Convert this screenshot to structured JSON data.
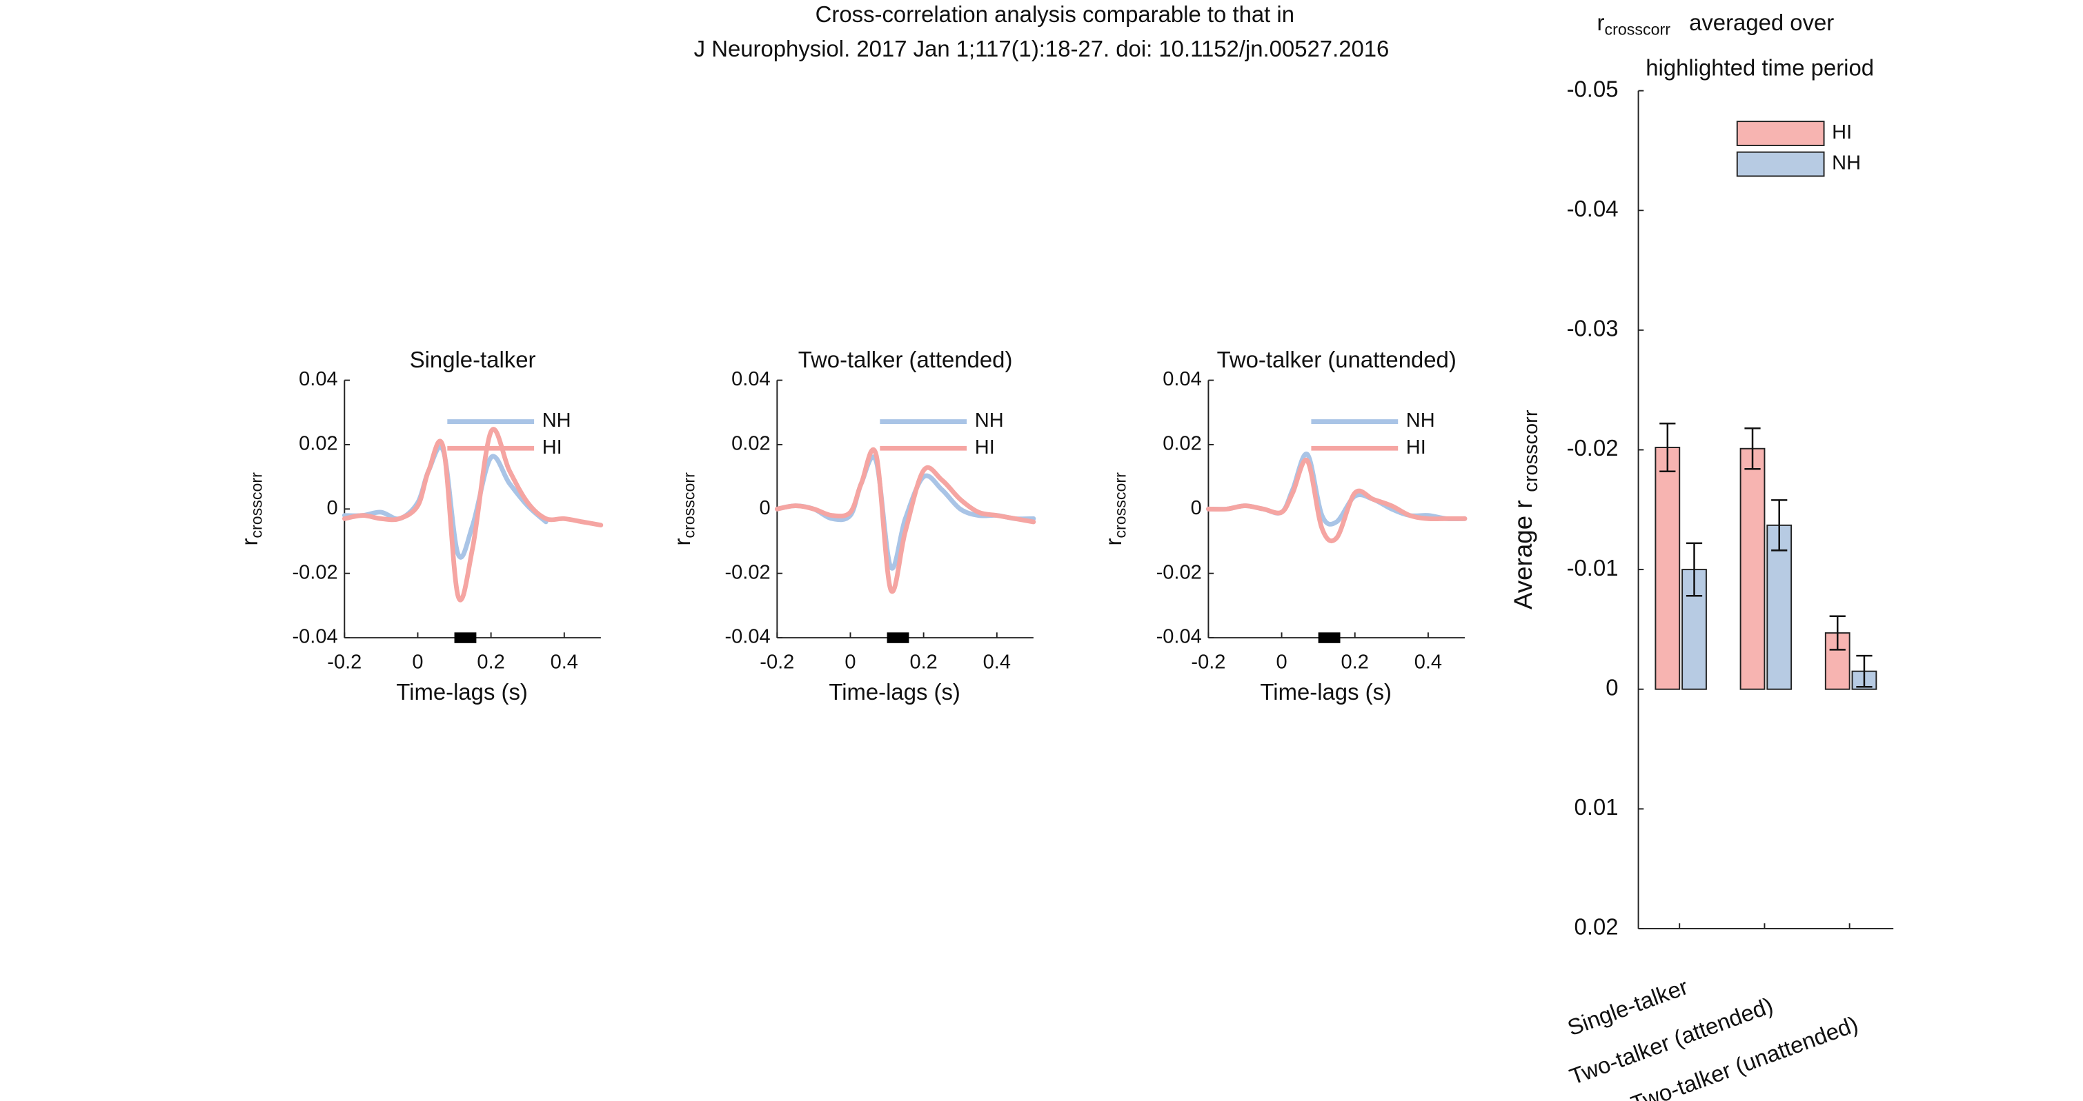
{
  "title": [
    "Cross-correlation analysis comparable to that in",
    "J Neurophysiol. 2017 Jan 1;117(1):18-27. doi: 10.1152/jn.00527.2016"
  ],
  "chart_data": [
    {
      "type": "line",
      "title": "Single-talker",
      "xlabel": "Time-lags (s)",
      "ylabel": {
        "main": "r",
        "sub": "crosscorr"
      },
      "x": [
        -0.2,
        -0.15,
        -0.1,
        -0.05,
        0,
        0.03,
        0.07,
        0.11,
        0.15,
        0.2,
        0.25,
        0.3,
        0.35,
        0.4,
        0.45,
        0.5
      ],
      "xlim": [
        -0.2,
        0.5
      ],
      "xticks": [
        -0.2,
        0,
        0.2,
        0.4
      ],
      "ylim": [
        -0.04,
        0.04
      ],
      "yticks": [
        -0.04,
        -0.02,
        0,
        0.02,
        0.04
      ],
      "highlight": [
        0.1,
        0.16
      ],
      "series": [
        {
          "name": "NH",
          "color": "#a9c4e6",
          "values": [
            -0.002,
            -0.002,
            -0.001,
            -0.003,
            0.002,
            0.012,
            0.018,
            -0.014,
            -0.005,
            0.016,
            0.008,
            0.001,
            -0.004,
            null,
            null,
            null
          ]
        },
        {
          "name": "HI",
          "color": "#f5a5a2",
          "values": [
            -0.003,
            -0.002,
            -0.003,
            -0.003,
            0.001,
            0.012,
            0.019,
            -0.027,
            -0.012,
            0.024,
            0.012,
            0.002,
            -0.003,
            -0.003,
            -0.004,
            -0.005
          ]
        }
      ]
    },
    {
      "type": "line",
      "title": "Two-talker (attended)",
      "xlabel": "Time-lags (s)",
      "ylabel": {
        "main": "r",
        "sub": "crosscorr"
      },
      "x": [
        -0.2,
        -0.15,
        -0.1,
        -0.05,
        0,
        0.03,
        0.07,
        0.11,
        0.15,
        0.2,
        0.25,
        0.3,
        0.35,
        0.4,
        0.45,
        0.5
      ],
      "xlim": [
        -0.2,
        0.5
      ],
      "xticks": [
        -0.2,
        0,
        0.2,
        0.4
      ],
      "ylim": [
        -0.04,
        0.04
      ],
      "yticks": [
        -0.04,
        -0.02,
        0,
        0.02,
        0.04
      ],
      "highlight": [
        0.1,
        0.16
      ],
      "series": [
        {
          "name": "NH",
          "color": "#a9c4e6",
          "values": [
            0,
            0.001,
            0,
            -0.003,
            -0.002,
            0.008,
            0.015,
            -0.018,
            -0.003,
            0.01,
            0.006,
            0,
            -0.002,
            -0.002,
            -0.003,
            -0.003
          ]
        },
        {
          "name": "HI",
          "color": "#f5a5a2",
          "values": [
            0,
            0.001,
            0,
            -0.002,
            -0.001,
            0.008,
            0.017,
            -0.025,
            -0.007,
            0.012,
            0.009,
            0.003,
            -0.001,
            -0.002,
            -0.003,
            -0.004
          ]
        }
      ]
    },
    {
      "type": "line",
      "title": "Two-talker (unattended)",
      "xlabel": "Time-lags (s)",
      "ylabel": {
        "main": "r",
        "sub": "crosscorr"
      },
      "x": [
        -0.2,
        -0.15,
        -0.1,
        -0.05,
        0,
        0.03,
        0.07,
        0.11,
        0.15,
        0.2,
        0.25,
        0.3,
        0.35,
        0.4,
        0.45,
        0.5
      ],
      "xlim": [
        -0.2,
        0.5
      ],
      "xticks": [
        -0.2,
        0,
        0.2,
        0.4
      ],
      "ylim": [
        -0.04,
        0.04
      ],
      "yticks": [
        -0.04,
        -0.02,
        0,
        0.02,
        0.04
      ],
      "highlight": [
        0.1,
        0.16
      ],
      "series": [
        {
          "name": "NH",
          "color": "#a9c4e6",
          "values": [
            0,
            0,
            0.001,
            0,
            -0.001,
            0.006,
            0.017,
            -0.002,
            -0.004,
            0.004,
            0.003,
            0,
            -0.002,
            -0.002,
            -0.003,
            -0.003
          ]
        },
        {
          "name": "HI",
          "color": "#f5a5a2",
          "values": [
            0,
            0,
            0.001,
            0,
            -0.001,
            0.005,
            0.015,
            -0.006,
            -0.009,
            0.005,
            0.003,
            0.001,
            -0.002,
            -0.003,
            -0.003,
            -0.003
          ]
        }
      ]
    },
    {
      "type": "bar",
      "title": {
        "main": "r",
        "sub": "crosscorr",
        "rest": "averaged over",
        "line2": "highlighted time period"
      },
      "ylabel": {
        "main": "Average r",
        "sub": "crosscorr"
      },
      "categories": [
        "Single-talker",
        "Two-talker (attended)",
        "Two-talker (unattended)"
      ],
      "ylim": [
        -0.05,
        0.02
      ],
      "y_reversed": true,
      "yticks": [
        -0.05,
        -0.04,
        -0.03,
        -0.02,
        -0.01,
        0,
        0.01,
        0.02
      ],
      "series": [
        {
          "name": "HI",
          "color": "#f7b4b1",
          "values": [
            -0.0202,
            -0.0201,
            -0.0047
          ],
          "errors": [
            0.002,
            0.0017,
            0.0014
          ]
        },
        {
          "name": "NH",
          "color": "#b7cbe3",
          "values": [
            -0.01,
            -0.0137,
            -0.0015
          ],
          "errors": [
            0.0022,
            0.0021,
            0.0013
          ]
        }
      ]
    }
  ]
}
